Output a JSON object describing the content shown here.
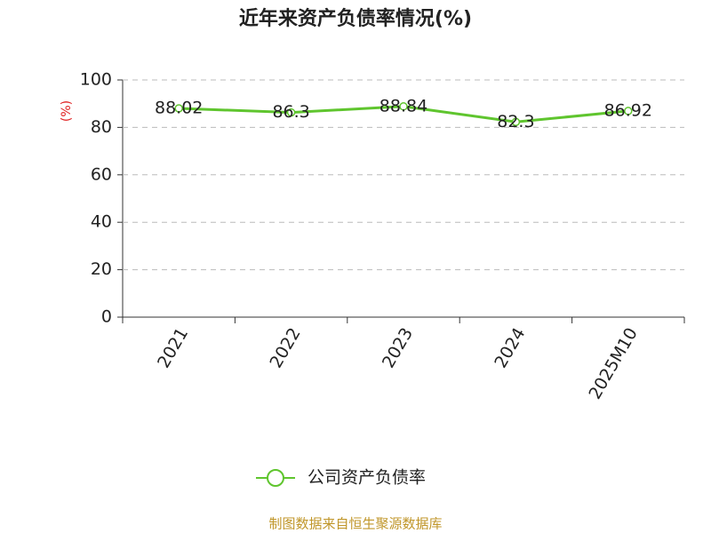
{
  "chart_data": {
    "type": "line",
    "title": "近年来资产负债率情况(%)",
    "y_label": "(%)",
    "categories": [
      "2021",
      "2022",
      "2023",
      "2024",
      "2025M10"
    ],
    "series": [
      {
        "name": "公司资产负债率",
        "color": "#5fc52e",
        "values": [
          88.02,
          86.3,
          88.84,
          82.3,
          86.92
        ]
      }
    ],
    "ylim": [
      0,
      100
    ],
    "yticks": [
      0,
      20,
      40,
      60,
      80,
      100
    ],
    "grid": true,
    "legend": "bottom",
    "source": "制图数据来自恒生聚源数据库"
  }
}
